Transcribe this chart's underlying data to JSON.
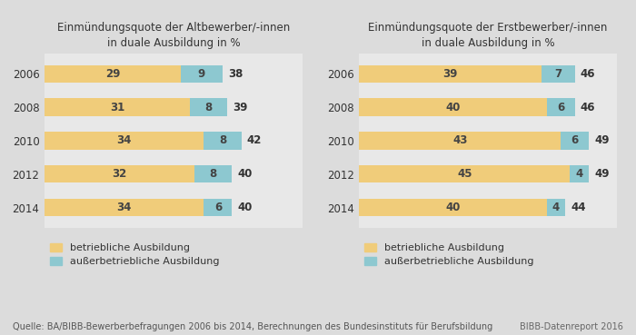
{
  "left_title": "Einmündungsquote der Altbewerber/-innen\nin duale Ausbildung in %",
  "right_title": "Einmündungsquote der Erstbewerber/-innen\nin duale Ausbildung in %",
  "years": [
    "2006",
    "2008",
    "2010",
    "2012",
    "2014"
  ],
  "left_betrieblich": [
    29,
    31,
    34,
    32,
    34
  ],
  "left_ausserbetrieblich": [
    9,
    8,
    8,
    8,
    6
  ],
  "left_total": [
    38,
    39,
    42,
    40,
    40
  ],
  "right_betrieblich": [
    39,
    40,
    43,
    45,
    40
  ],
  "right_ausserbetrieblich": [
    7,
    6,
    6,
    4,
    4
  ],
  "right_total": [
    46,
    46,
    49,
    49,
    44
  ],
  "color_betrieblich": "#F0CC7A",
  "color_ausserbetrieblich": "#8DC8D0",
  "outer_bg": "#DCDCDC",
  "inner_bg": "#E8E8E8",
  "legend_betrieblich": "betriebliche Ausbildung",
  "legend_ausserbetrieblich": "außerbetriebliche Ausbildung",
  "source_text": "Quelle: BA/BIBB-Bewerberbefragungen 2006 bis 2014, Berechnungen des Bundesinstituts für Berufsbildung",
  "bibb_text": "BIBB-Datenreport 2016",
  "title_fontsize": 8.5,
  "label_fontsize": 8.5,
  "tick_fontsize": 8.5,
  "legend_fontsize": 8.0,
  "source_fontsize": 7.0
}
